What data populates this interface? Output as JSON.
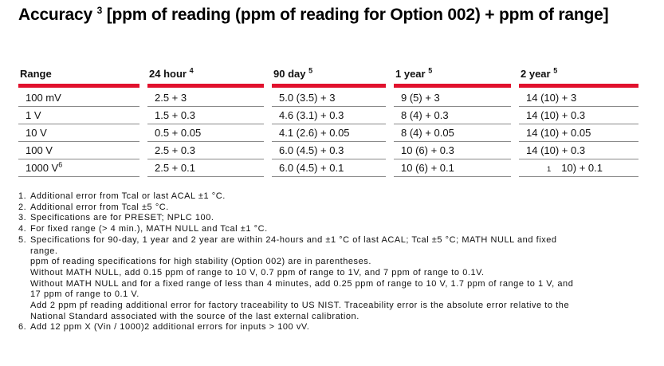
{
  "colors": {
    "accent_red": "#E1112D",
    "divider_gray": "#8A8A8A",
    "text_black": "#111111"
  },
  "title": {
    "lead": "Accuracy",
    "sup": "3",
    "rest": "[ppm of reading (ppm of reading for Option 002) + ppm of range]"
  },
  "table": {
    "columns": [
      {
        "label": "Range",
        "sup": ""
      },
      {
        "label": "24 hour",
        "sup": "4"
      },
      {
        "label": "90 day",
        "sup": "5"
      },
      {
        "label": "1 year",
        "sup": "5"
      },
      {
        "label": "2 year",
        "sup": "5"
      }
    ],
    "rows": [
      {
        "range": "100 mV",
        "range_sup": "",
        "cells": [
          "2.5 + 3",
          "5.0 (3.5) + 3",
          "9 (5) + 3",
          "14 (10) + 3"
        ]
      },
      {
        "range": "1 V",
        "range_sup": "",
        "cells": [
          "1.5 + 0.3",
          "4.6 (3.1) + 0.3",
          "8 (4) + 0.3",
          "14 (10) + 0.3"
        ]
      },
      {
        "range": "10 V",
        "range_sup": "",
        "cells": [
          "0.5 + 0.05",
          "4.1 (2.6) + 0.05",
          "8 (4) + 0.05",
          "14 (10) + 0.05"
        ]
      },
      {
        "range": "100 V",
        "range_sup": "",
        "cells": [
          "2.5 + 0.3",
          "6.0 (4.5) + 0.3",
          "10 (6) + 0.3",
          "14 (10) + 0.3"
        ]
      },
      {
        "range": "1000 V",
        "range_sup": "6",
        "cells": [
          "2.5 + 0.1",
          "6.0 (4.5) + 0.1",
          "10 (6) + 0.1",
          {
            "small_prefix": "1",
            "text": "10) + 0.1"
          }
        ]
      }
    ]
  },
  "footnotes": [
    {
      "num": "1.",
      "lines": [
        "Additional error from Tcal or last ACAL ±1 °C."
      ]
    },
    {
      "num": "2.",
      "lines": [
        "Additional error from Tcal ±5 °C."
      ]
    },
    {
      "num": "3.",
      "lines": [
        "Specifications are for PRESET; NPLC 100."
      ]
    },
    {
      "num": "4.",
      "lines": [
        "For fixed range (> 4 min.), MATH NULL and Tcal ±1 °C."
      ]
    },
    {
      "num": "5.",
      "lines": [
        "Specifications for 90-day, 1 year and 2 year are within 24-hours and ±1 °C of last ACAL; Tcal ±5 °C; MATH NULL and fixed",
        "range.",
        "ppm of reading specifications for high stability (Option 002) are in parentheses.",
        "Without MATH NULL, add 0.15 ppm of range to 10 V, 0.7 ppm of range to 1V, and 7 ppm of range to 0.1V.",
        "Without MATH NULL and for a fixed range of less than 4 minutes, add 0.25 ppm of range to 10 V, 1.7 ppm of range to 1 V, and",
        "17 ppm of range to 0.1 V.",
        "Add 2 ppm pf reading additional error for factory traceability to US NIST. Traceability error is the absolute error relative to the",
        "National Standard associated with the source of the last external calibration."
      ]
    },
    {
      "num": "6.",
      "lines": [
        "Add 12 ppm X (Vin / 1000)2 additional errors for inputs > 100 vV."
      ]
    }
  ]
}
